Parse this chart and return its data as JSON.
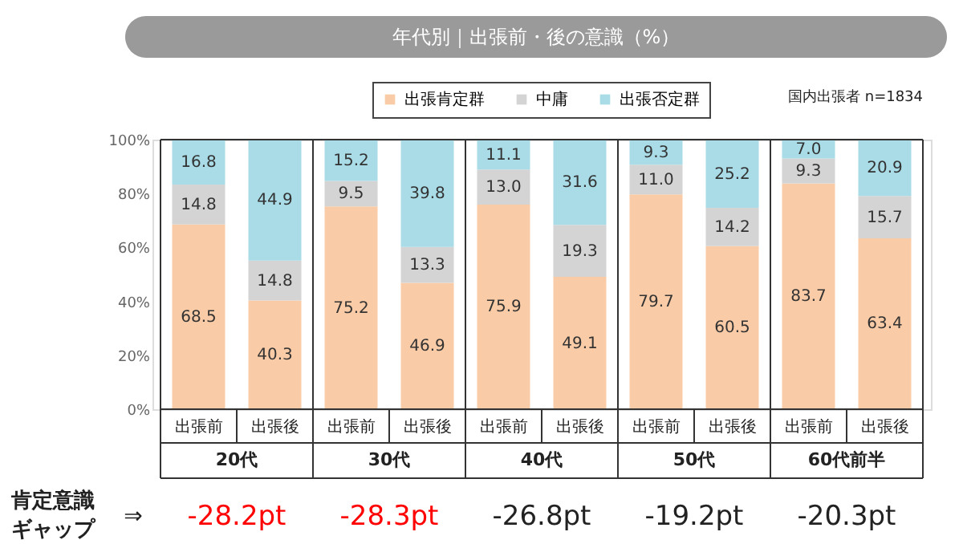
{
  "chart_data": {
    "type": "bar",
    "title": "年代別｜出張前・後の意識（%）",
    "categories": [
      "出張前",
      "出張後",
      "出張前",
      "出張後",
      "出張前",
      "出張後",
      "出張前",
      "出張後",
      "出張前",
      "出張後"
    ],
    "stacked": true,
    "series": [
      {
        "name": "出張肯定群",
        "color": "#f9cba6",
        "values": [
          68.5,
          40.3,
          75.2,
          46.9,
          75.9,
          49.1,
          79.7,
          60.5,
          83.7,
          63.4
        ],
        "value_labels": [
          "68.5",
          "40.3",
          "75.2",
          "46.9",
          "75.9",
          "49.1",
          "79.7",
          "60.5",
          "83.7",
          "63.4"
        ]
      },
      {
        "name": "中庸",
        "color": "#d4d4d4",
        "values": [
          14.8,
          14.8,
          9.5,
          13.3,
          13.0,
          19.3,
          11.0,
          14.2,
          9.3,
          15.7
        ],
        "value_labels": [
          "14.8",
          "14.8",
          "9.5",
          "13.3",
          "13.0",
          "19.3",
          "11.0",
          "14.2",
          "9.3",
          "15.7"
        ]
      },
      {
        "name": "出張否定群",
        "color": "#a9dce7",
        "values": [
          16.8,
          44.9,
          15.2,
          39.8,
          11.1,
          31.6,
          9.3,
          25.2,
          7.0,
          20.9
        ],
        "value_labels": [
          "16.8",
          "44.9",
          "15.2",
          "39.8",
          "11.1",
          "31.6",
          "9.3",
          "25.2",
          "7.0",
          "20.9"
        ]
      }
    ],
    "ylim": [
      0,
      100
    ],
    "yticks": [
      {
        "value": 0,
        "label": "0%"
      },
      {
        "value": 20,
        "label": "20%"
      },
      {
        "value": 40,
        "label": "40%"
      },
      {
        "value": 60,
        "label": "60%"
      },
      {
        "value": 80,
        "label": "80%"
      },
      {
        "value": 100,
        "label": "100%"
      }
    ],
    "legend": "top",
    "grid": false,
    "annotations": [
      "国内出張者 n=1834",
      "20代",
      "30代",
      "40代",
      "50代",
      "60代前半",
      "肯定意識",
      "ギャップ",
      "⇒",
      "-28.2pt",
      "-28.3pt",
      "-26.8pt",
      "-19.2pt",
      "-20.3pt"
    ]
  }
}
